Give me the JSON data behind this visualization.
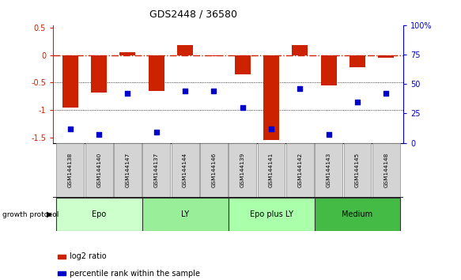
{
  "title": "GDS2448 / 36580",
  "samples": [
    "GSM144138",
    "GSM144140",
    "GSM144147",
    "GSM144137",
    "GSM144144",
    "GSM144146",
    "GSM144139",
    "GSM144141",
    "GSM144142",
    "GSM144143",
    "GSM144145",
    "GSM144148"
  ],
  "log2_ratio": [
    -0.95,
    -0.68,
    0.05,
    -0.65,
    0.18,
    -0.02,
    -0.35,
    -1.55,
    0.18,
    -0.55,
    -0.22,
    -0.05
  ],
  "percentile_rank": [
    12,
    7,
    42,
    9,
    44,
    44,
    30,
    12,
    46,
    7,
    35,
    42
  ],
  "groups": [
    {
      "label": "Epo",
      "start": 0,
      "end": 3,
      "color": "#ccffcc"
    },
    {
      "label": "LY",
      "start": 3,
      "end": 6,
      "color": "#99ee99"
    },
    {
      "label": "Epo plus LY",
      "start": 6,
      "end": 9,
      "color": "#aaffaa"
    },
    {
      "label": "Medium",
      "start": 9,
      "end": 12,
      "color": "#44bb44"
    }
  ],
  "bar_color": "#cc2200",
  "dot_color": "#0000cc",
  "ylim_left": [
    -1.6,
    0.55
  ],
  "ylim_right": [
    0,
    100
  ],
  "background_color": "#ffffff",
  "bar_width": 0.55,
  "left_yticks": [
    0.5,
    0.0,
    -0.5,
    -1.0,
    -1.5
  ],
  "left_yticklabels": [
    "0.5",
    "0",
    "-0.5",
    "-1",
    "-1.5"
  ],
  "right_yticks": [
    0,
    25,
    50,
    75,
    100
  ],
  "right_yticklabels": [
    "0",
    "25",
    "50",
    "75",
    "100%"
  ]
}
